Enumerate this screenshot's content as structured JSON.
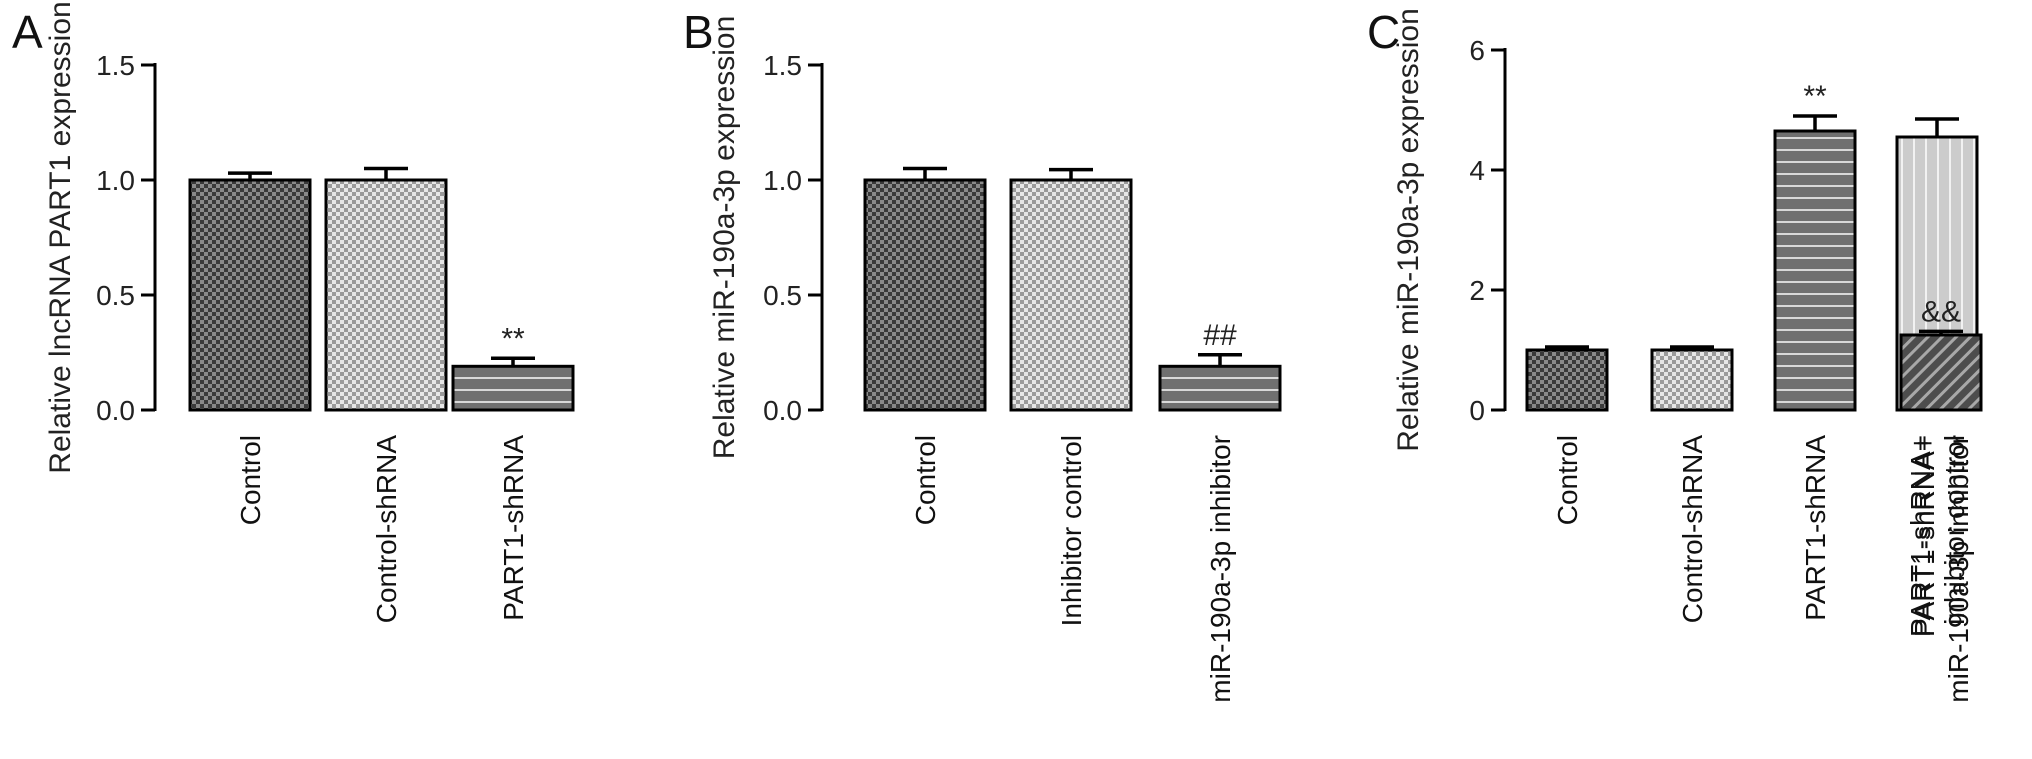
{
  "chart_data": [
    {
      "panel": "A",
      "type": "bar",
      "ylabel": "Relative lncRNA PART1 expression",
      "ylim": [
        0,
        1.5
      ],
      "yticks": [
        "0.0",
        "0.5",
        "1.0",
        "1.5"
      ],
      "categories": [
        [
          "Control"
        ],
        [
          "Control-shRNA"
        ],
        [
          "PART1-shRNA"
        ]
      ],
      "values": [
        1.0,
        1.0,
        0.19
      ],
      "errors": [
        0.03,
        0.05,
        0.035
      ],
      "annotations": [
        "",
        "",
        "**"
      ],
      "colors": [
        "#4a4a4a",
        "#bdbdbd",
        "#6e6e6e"
      ],
      "patterns": [
        "checker-dark",
        "checker-light",
        "hlines"
      ]
    },
    {
      "panel": "B",
      "type": "bar",
      "ylabel": "Relative miR-190a-3p expression",
      "ylim": [
        0,
        1.5
      ],
      "yticks": [
        "0.0",
        "0.5",
        "1.0",
        "1.5"
      ],
      "categories": [
        [
          "Control"
        ],
        [
          "Inhibitor control"
        ],
        [
          "miR-190a-3p inhibitor"
        ]
      ],
      "values": [
        1.0,
        1.0,
        0.19
      ],
      "errors": [
        0.05,
        0.045,
        0.05
      ],
      "annotations": [
        "",
        "",
        "##"
      ],
      "colors": [
        "#4a4a4a",
        "#bdbdbd",
        "#6e6e6e"
      ],
      "patterns": [
        "checker-dark",
        "checker-light",
        "hlines"
      ]
    },
    {
      "panel": "C",
      "type": "bar",
      "ylabel": "Relative miR-190a-3p expression",
      "ylim": [
        0,
        6
      ],
      "yticks": [
        "0",
        "2",
        "4",
        "6"
      ],
      "categories": [
        [
          "Control"
        ],
        [
          "Control-shRNA"
        ],
        [
          "PART1-shRNA"
        ],
        [
          "PART1-shRNA+",
          "inhibitor control"
        ],
        [
          "PART1-shRNA+",
          "miR-190a-3p inhibitor"
        ]
      ],
      "values": [
        1.0,
        1.0,
        4.65,
        4.55,
        1.25
      ],
      "errors": [
        0.05,
        0.05,
        0.25,
        0.3,
        0.06
      ],
      "annotations": [
        "",
        "",
        "**",
        "",
        "&&"
      ],
      "colors": [
        "#4a4a4a",
        "#bdbdbd",
        "#6e6e6e",
        "#cfcfcf",
        "#5a5a5a"
      ],
      "patterns": [
        "checker-dark",
        "checker-light",
        "hlines",
        "vlines",
        "diag"
      ]
    }
  ]
}
